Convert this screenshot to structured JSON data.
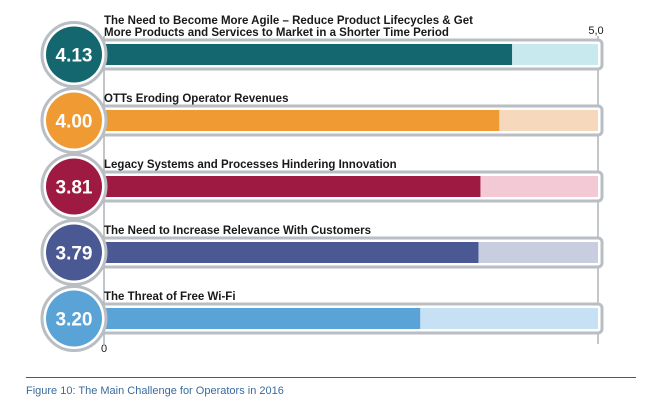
{
  "chart_data": {
    "type": "bar",
    "orientation": "horizontal",
    "categories": [
      "The Need to Become More Agile – Reduce Product Lifecycles & Get More Products and Services to Market in a Shorter Time Period",
      "OTTs Eroding Operator Revenues",
      "Legacy Systems and Processes Hindering Innovation",
      "The Need to Increase Relevance With Customers",
      "The Threat of Free Wi-Fi"
    ],
    "label_lines": [
      [
        "The Need to Become More Agile – Reduce Product Lifecycles & Get",
        "More Products and Services to Market in a Shorter Time Period"
      ],
      [
        "OTTs Eroding Operator Revenues"
      ],
      [
        "Legacy Systems and Processes Hindering Innovation"
      ],
      [
        "The Need to Increase Relevance With Customers"
      ],
      [
        "The Threat of Free Wi-Fi"
      ]
    ],
    "values": [
      4.13,
      4.0,
      3.81,
      3.79,
      3.2
    ],
    "value_labels": [
      "4.13",
      "4.00",
      "3.81",
      "3.79",
      "3.20"
    ],
    "xlim": [
      0,
      5
    ],
    "tick_labels": {
      "min": "0",
      "max": "5,0"
    },
    "colors": {
      "fill": [
        "#14676f",
        "#ef9a32",
        "#9e1a42",
        "#4a5993",
        "#5aa3d6"
      ],
      "track": [
        "#c8e9ee",
        "#f6d8bd",
        "#f3c9d5",
        "#c8cde0",
        "#c6e1f3"
      ]
    },
    "frame_color": "#b8bec4",
    "grid": false,
    "legend": "none"
  },
  "caption": "Figure 10: The Main Challenge for Operators in 2016"
}
